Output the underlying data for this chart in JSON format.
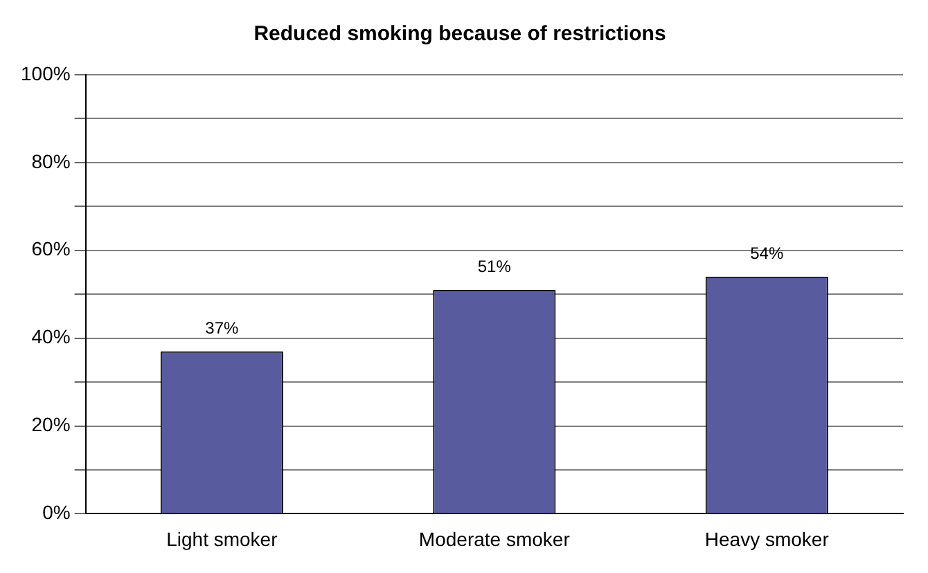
{
  "chart_data": {
    "type": "bar",
    "title": "Reduced smoking because of restrictions",
    "categories": [
      "Light smoker",
      "Moderate smoker",
      "Heavy smoker"
    ],
    "values": [
      37,
      51,
      54
    ],
    "value_labels": [
      "37%",
      "51%",
      "54%"
    ],
    "color": "#585c9e",
    "ylim": [
      0,
      100
    ],
    "yticks": [
      {
        "value": 0,
        "label": "0%"
      },
      {
        "value": 10,
        "label": null
      },
      {
        "value": 20,
        "label": "20%"
      },
      {
        "value": 30,
        "label": null
      },
      {
        "value": 40,
        "label": "40%"
      },
      {
        "value": 50,
        "label": null
      },
      {
        "value": 60,
        "label": "60%"
      },
      {
        "value": 70,
        "label": null
      },
      {
        "value": 80,
        "label": "80%"
      },
      {
        "value": 90,
        "label": null
      },
      {
        "value": 100,
        "label": "100%"
      }
    ],
    "grid": "y",
    "legend": false
  }
}
